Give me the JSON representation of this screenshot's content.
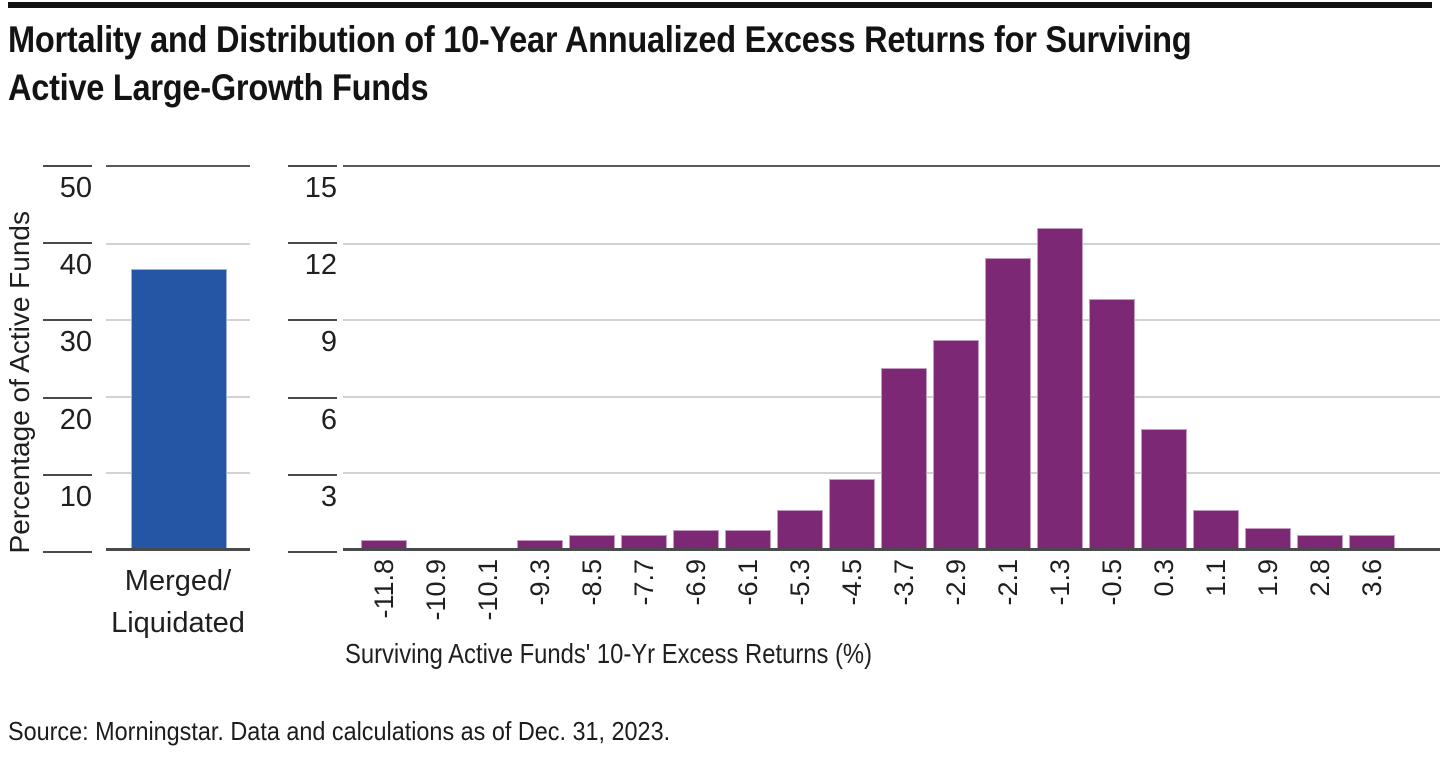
{
  "header": {
    "title_lines": [
      "Mortality and Distribution of 10-Year Annualized Excess Returns for Surviving",
      "Active Large-Growth Funds"
    ]
  },
  "footer": {
    "source": "Source: Morningstar. Data and calculations as of Dec. 31, 2023."
  },
  "colors": {
    "mortality_bar": "#2456A5",
    "histogram_bar": "#7D2875",
    "gridline": "#D2D2D2",
    "axis_line": "#4A4A4C",
    "text": "#1F1F1F"
  },
  "chart_data": [
    {
      "type": "bar",
      "panel": "mortality",
      "title": "",
      "categories": [
        "Merged/Liquidated"
      ],
      "category_label_lines": [
        "Merged/",
        "Liquidated"
      ],
      "values": [
        36.6
      ],
      "ylabel": "Percentage of Active Funds",
      "ylim": [
        0,
        50
      ],
      "yticks": [
        50,
        40,
        30,
        20,
        10
      ],
      "grid": true,
      "legend": "none",
      "bar_color": "#2456A5"
    },
    {
      "type": "bar",
      "panel": "histogram",
      "title": "",
      "categories": [
        "-11.8",
        "-10.9",
        "-10.1",
        "-9.3",
        "-8.5",
        "-7.7",
        "-6.9",
        "-6.1",
        "-5.3",
        "-4.5",
        "-3.7",
        "-2.9",
        "-2.1",
        "-1.3",
        "-0.5",
        "0.3",
        "1.1",
        "1.9",
        "2.8",
        "3.6"
      ],
      "values": [
        0.3,
        0,
        0,
        0.3,
        0.5,
        0.5,
        0.7,
        0.7,
        1.5,
        2.7,
        7.1,
        8.2,
        11.4,
        12.6,
        9.8,
        4.7,
        1.5,
        0.8,
        0.5,
        0.5
      ],
      "xlabel": "Surviving Active Funds' 10-Yr Excess Returns (%)",
      "ylabel": "",
      "ylim": [
        0,
        15
      ],
      "yticks": [
        15,
        12,
        9,
        6,
        3
      ],
      "grid": true,
      "legend": "none",
      "bar_color": "#7D2875"
    }
  ]
}
